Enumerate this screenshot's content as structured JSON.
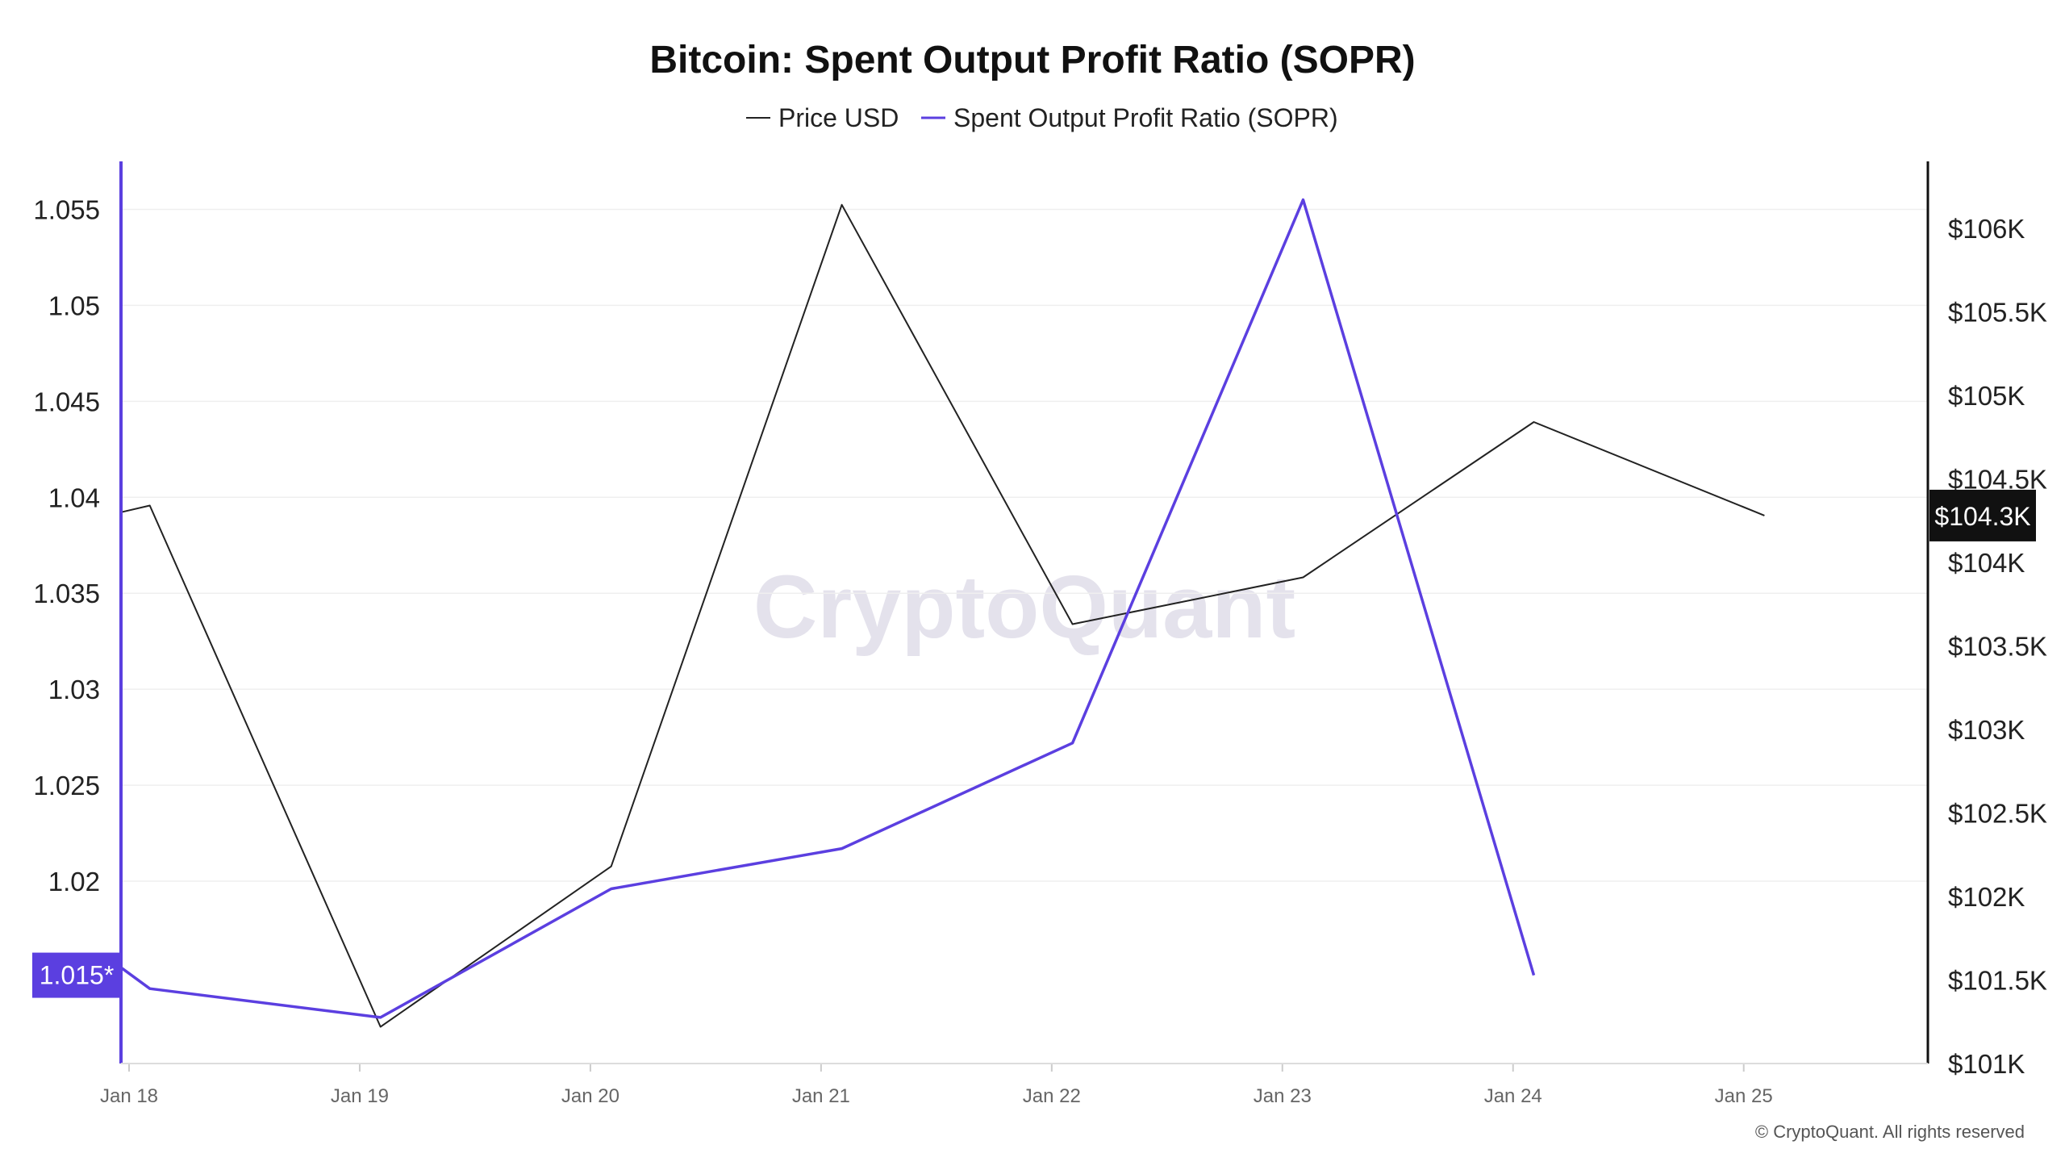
{
  "title": "Bitcoin: Spent Output Profit Ratio (SOPR)",
  "watermark": "CryptoQuant",
  "copyright": "© CryptoQuant. All rights reserved",
  "colors": {
    "price": "#222222",
    "sopr": "#5b3fe0",
    "left_axis": "#5b3fe0",
    "right_axis": "#111111",
    "grid": "#efefef",
    "price_badge_bg": "#111111",
    "sopr_badge_bg": "#5b3fe0"
  },
  "legend": {
    "price_label": "Price USD",
    "sopr_label": "Spent Output Profit Ratio (SOPR)"
  },
  "chart_data": {
    "type": "line",
    "title": "Bitcoin: Spent Output Profit Ratio (SOPR)",
    "x_tick_labels": [
      "Jan 18",
      "Jan 19",
      "Jan 20",
      "Jan 21",
      "Jan 22",
      "Jan 23",
      "Jan 24",
      "Jan 25"
    ],
    "x_range": [
      "2025-01-18T00:00",
      "2025-01-25T20:00"
    ],
    "left_axis": {
      "series": "Spent Output Profit Ratio (SOPR)",
      "ticks": [
        "1.055",
        "1.05",
        "1.045",
        "1.04",
        "1.035",
        "1.03",
        "1.025",
        "1.02"
      ],
      "tick_values": [
        1.055,
        1.05,
        1.045,
        1.04,
        1.035,
        1.03,
        1.025,
        1.02
      ],
      "range": [
        1.0105,
        1.0575
      ],
      "current_value_label": "1.015*"
    },
    "right_axis": {
      "series": "Price USD",
      "ticks": [
        "$106K",
        "$105.5K",
        "$105K",
        "$104.5K",
        "$104K",
        "$103.5K",
        "$103K",
        "$102.5K",
        "$102K",
        "$101.5K",
        "$101K"
      ],
      "tick_values": [
        106000,
        105500,
        105000,
        104500,
        104000,
        103500,
        103000,
        102500,
        102000,
        101500,
        101000
      ],
      "range": [
        101000,
        106400
      ],
      "current_value_label": "$104.3K"
    },
    "grid": true,
    "legend_position": "top-center",
    "series": [
      {
        "name": "Price USD",
        "axis": "right",
        "points": [
          {
            "x": "2025-01-18T00:00",
            "y": 104300
          },
          {
            "x": "2025-01-18T03:00",
            "y": 104340
          },
          {
            "x": "2025-01-19T03:00",
            "y": 101220
          },
          {
            "x": "2025-01-20T03:00",
            "y": 102180
          },
          {
            "x": "2025-01-21T03:00",
            "y": 106140
          },
          {
            "x": "2025-01-22T03:00",
            "y": 103630
          },
          {
            "x": "2025-01-23T03:00",
            "y": 103910
          },
          {
            "x": "2025-01-24T03:00",
            "y": 104840
          },
          {
            "x": "2025-01-25T03:00",
            "y": 104280
          }
        ]
      },
      {
        "name": "Spent Output Profit Ratio (SOPR)",
        "axis": "left",
        "points": [
          {
            "x": "2025-01-18T00:00",
            "y": 1.0155
          },
          {
            "x": "2025-01-18T03:00",
            "y": 1.0144
          },
          {
            "x": "2025-01-19T03:00",
            "y": 1.0129
          },
          {
            "x": "2025-01-20T03:00",
            "y": 1.0196
          },
          {
            "x": "2025-01-21T03:00",
            "y": 1.0217
          },
          {
            "x": "2025-01-22T03:00",
            "y": 1.0272
          },
          {
            "x": "2025-01-23T03:00",
            "y": 1.0555
          },
          {
            "x": "2025-01-24T03:00",
            "y": 1.0151
          }
        ]
      }
    ]
  }
}
